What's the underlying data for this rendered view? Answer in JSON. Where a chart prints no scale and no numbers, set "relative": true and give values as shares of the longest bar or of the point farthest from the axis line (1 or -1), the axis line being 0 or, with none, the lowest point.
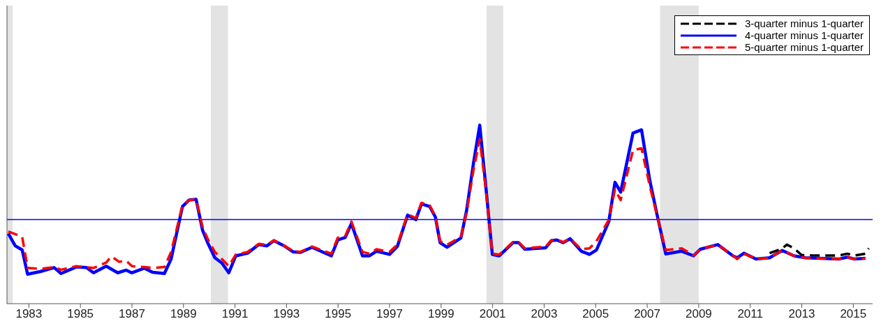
{
  "chart_data": {
    "type": "line",
    "relative": true,
    "xlim": [
      1982.15,
      2015.75
    ],
    "xticks": [
      1983,
      1985,
      1987,
      1989,
      1991,
      1993,
      1995,
      1997,
      1999,
      2001,
      2003,
      2005,
      2007,
      2009,
      2011,
      2013,
      2015
    ],
    "legend": "top right",
    "series": [
      {
        "name": "3-quarter minus 1-quarter",
        "color": "#000000",
        "line_style": "dashed",
        "x": [
          2011.75,
          2012.24,
          2012.42,
          2012.7,
          2013.0,
          2013.4,
          2014.0,
          2014.44,
          2014.77,
          2015.04,
          2015.47,
          2015.6
        ],
        "values": [
          0.283,
          0.309,
          0.331,
          0.31,
          0.272,
          0.27,
          0.27,
          0.27,
          0.28,
          0.27,
          0.28,
          0.31
        ]
      },
      {
        "name": "4-quarter minus 1-quarter",
        "color": "#0000ff",
        "line_style": "solid",
        "x": [
          1982.2,
          1982.47,
          1982.74,
          1982.95,
          1983.44,
          1983.98,
          1984.25,
          1984.84,
          1985.24,
          1985.51,
          1986.0,
          1986.45,
          1986.78,
          1986.99,
          1987.48,
          1987.8,
          1988.26,
          1988.52,
          1988.96,
          1989.22,
          1989.49,
          1989.74,
          1989.95,
          1990.22,
          1990.49,
          1990.76,
          1991.03,
          1991.49,
          1991.92,
          1992.24,
          1992.51,
          1992.91,
          1993.26,
          1993.53,
          1993.99,
          1994.74,
          1994.99,
          1995.28,
          1995.52,
          1995.95,
          1996.22,
          1996.49,
          1997.0,
          1997.3,
          1997.7,
          1998.02,
          1998.24,
          1998.56,
          1998.78,
          1998.96,
          1999.23,
          1999.77,
          1999.99,
          2000.26,
          2000.5,
          2000.72,
          2000.99,
          2001.26,
          2001.79,
          2002.01,
          2002.25,
          2003.06,
          2003.28,
          2003.49,
          2003.74,
          2004.01,
          2004.44,
          2004.76,
          2005.03,
          2005.51,
          2005.75,
          2005.97,
          2006.45,
          2006.78,
          2007.1,
          2007.37,
          2007.72,
          2008.34,
          2008.8,
          2009.06,
          2009.74,
          2010.33,
          2010.49,
          2010.76,
          2011.22,
          2011.75,
          2012.24,
          2012.7,
          2013.15,
          2014.44,
          2014.77,
          2015.04,
          2015.47
        ],
        "values": [
          0.393,
          0.324,
          0.301,
          0.165,
          0.18,
          0.202,
          0.169,
          0.206,
          0.202,
          0.173,
          0.21,
          0.173,
          0.188,
          0.173,
          0.199,
          0.176,
          0.169,
          0.25,
          0.544,
          0.581,
          0.585,
          0.412,
          0.338,
          0.257,
          0.228,
          0.173,
          0.268,
          0.283,
          0.331,
          0.324,
          0.353,
          0.324,
          0.29,
          0.287,
          0.316,
          0.268,
          0.357,
          0.371,
          0.449,
          0.268,
          0.268,
          0.294,
          0.276,
          0.32,
          0.496,
          0.471,
          0.559,
          0.544,
          0.485,
          0.342,
          0.316,
          0.368,
          0.522,
          0.79,
          1.0,
          0.68,
          0.276,
          0.268,
          0.342,
          0.342,
          0.305,
          0.313,
          0.353,
          0.357,
          0.342,
          0.364,
          0.294,
          0.276,
          0.301,
          0.46,
          0.68,
          0.625,
          0.956,
          0.974,
          0.691,
          0.507,
          0.279,
          0.294,
          0.268,
          0.305,
          0.331,
          0.268,
          0.257,
          0.283,
          0.25,
          0.257,
          0.298,
          0.268,
          0.257,
          0.25,
          0.261,
          0.25,
          0.254
        ]
      },
      {
        "name": "5-quarter minus 1-quarter",
        "color": "#ff0000",
        "line_style": "dashed",
        "x": [
          1982.2,
          1982.47,
          1982.74,
          1982.95,
          1983.44,
          1983.98,
          1984.25,
          1984.84,
          1985.51,
          1986.0,
          1986.2,
          1986.5,
          1986.78,
          1987.0,
          1987.48,
          1987.8,
          1988.26,
          1988.52,
          1988.96,
          1989.22,
          1989.49,
          1989.74,
          1989.95,
          1990.22,
          1990.49,
          1990.76,
          1991.03,
          1991.49,
          1991.92,
          1992.24,
          1992.51,
          1992.91,
          1993.26,
          1993.53,
          1993.99,
          1994.74,
          1994.99,
          1995.28,
          1995.52,
          1995.95,
          1996.22,
          1996.49,
          1997.0,
          1997.3,
          1997.7,
          1998.02,
          1998.24,
          1998.56,
          1998.78,
          1998.96,
          1999.23,
          1999.77,
          1999.99,
          2000.26,
          2000.5,
          2000.72,
          2000.99,
          2001.26,
          2001.79,
          2002.01,
          2002.25,
          2003.06,
          2003.28,
          2003.49,
          2003.74,
          2004.01,
          2004.44,
          2004.76,
          2005.03,
          2005.51,
          2005.75,
          2005.97,
          2006.45,
          2006.78,
          2007.1,
          2007.37,
          2007.72,
          2008.34,
          2008.8,
          2009.06,
          2009.74,
          2010.33,
          2010.49,
          2010.76,
          2011.22,
          2011.75,
          2012.24,
          2012.7,
          2013.15,
          2014.44,
          2014.77,
          2015.04,
          2015.47
        ],
        "values": [
          0.404,
          0.39,
          0.375,
          0.2,
          0.195,
          0.205,
          0.19,
          0.21,
          0.2,
          0.23,
          0.265,
          0.235,
          0.24,
          0.21,
          0.205,
          0.2,
          0.205,
          0.29,
          0.55,
          0.58,
          0.585,
          0.43,
          0.36,
          0.29,
          0.25,
          0.21,
          0.275,
          0.29,
          0.335,
          0.33,
          0.355,
          0.325,
          0.295,
          0.29,
          0.32,
          0.28,
          0.37,
          0.38,
          0.46,
          0.29,
          0.28,
          0.305,
          0.29,
          0.33,
          0.5,
          0.48,
          0.565,
          0.55,
          0.49,
          0.35,
          0.33,
          0.375,
          0.51,
          0.75,
          0.92,
          0.66,
          0.28,
          0.275,
          0.345,
          0.345,
          0.31,
          0.32,
          0.355,
          0.36,
          0.345,
          0.365,
          0.305,
          0.31,
          0.35,
          0.47,
          0.64,
          0.58,
          0.86,
          0.87,
          0.66,
          0.5,
          0.3,
          0.31,
          0.27,
          0.305,
          0.33,
          0.27,
          0.25,
          0.28,
          0.25,
          0.257,
          0.298,
          0.268,
          0.257,
          0.25,
          0.261,
          0.25,
          0.254
        ]
      }
    ],
    "ref_lines": [
      {
        "axis": "y",
        "value": 0.471,
        "color": "#0000ff",
        "line_style": "solid"
      }
    ],
    "bands": [
      {
        "axis": "x",
        "from": 1982.15,
        "to": 1982.37,
        "color": "#e3e3e3"
      },
      {
        "axis": "x",
        "from": 1990.06,
        "to": 1990.73,
        "color": "#e3e3e3"
      },
      {
        "axis": "x",
        "from": 2000.76,
        "to": 2001.41,
        "color": "#e3e3e3"
      },
      {
        "axis": "x",
        "from": 2007.5,
        "to": 2009.0,
        "color": "#e3e3e3"
      }
    ]
  }
}
